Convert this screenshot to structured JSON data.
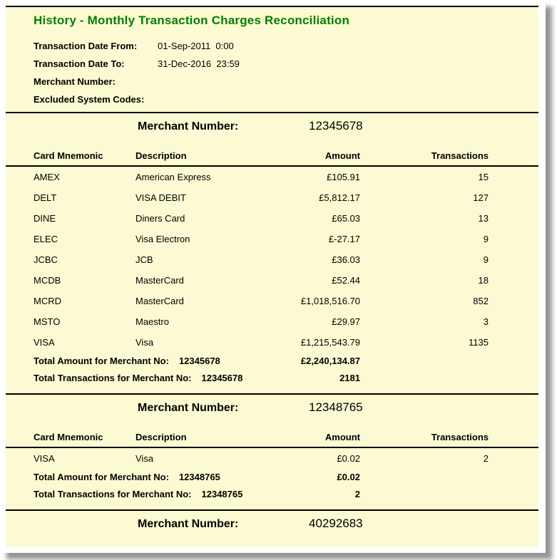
{
  "report": {
    "title": "History - Monthly Transaction Charges Reconciliation",
    "filters": [
      {
        "label": "Transaction Date From:",
        "value": "01-Sep-2011  0:00"
      },
      {
        "label": "Transaction Date To:",
        "value": "31-Dec-2016  23:59"
      },
      {
        "label": "Merchant Number:",
        "value": ""
      },
      {
        "label": "Excluded System Codes:",
        "value": ""
      }
    ],
    "merchant_label": "Merchant Number:",
    "columns": {
      "mnemonic": "Card Mnemonic",
      "description": "Description",
      "amount": "Amount",
      "transactions": "Transactions"
    },
    "total_amount_label": "Total Amount for Merchant No:",
    "total_transactions_label": "Total Transactions for Merchant No:",
    "sections": [
      {
        "merchant_number": "12345678",
        "rows": [
          {
            "mnemonic": "AMEX",
            "description": "American Express",
            "amount": "£105.91",
            "transactions": "15"
          },
          {
            "mnemonic": "DELT",
            "description": "VISA DEBIT",
            "amount": "£5,812.17",
            "transactions": "127"
          },
          {
            "mnemonic": "DINE",
            "description": "Diners Card",
            "amount": "£65.03",
            "transactions": "13"
          },
          {
            "mnemonic": "ELEC",
            "description": "Visa Electron",
            "amount": "£-27.17",
            "transactions": "9"
          },
          {
            "mnemonic": "JCBC",
            "description": "JCB",
            "amount": "£36.03",
            "transactions": "9"
          },
          {
            "mnemonic": "MCDB",
            "description": "MasterCard",
            "amount": "£52.44",
            "transactions": "18"
          },
          {
            "mnemonic": "MCRD",
            "description": "MasterCard",
            "amount": "£1,018,516.70",
            "transactions": "852"
          },
          {
            "mnemonic": "MSTO",
            "description": "Maestro",
            "amount": "£29.97",
            "transactions": "3"
          },
          {
            "mnemonic": "VISA",
            "description": "Visa",
            "amount": "£1,215,543.79",
            "transactions": "1135"
          }
        ],
        "total_amount": "£2,240,134.87",
        "total_transactions": "2181"
      },
      {
        "merchant_number": "12348765",
        "rows": [
          {
            "mnemonic": "VISA",
            "description": "Visa",
            "amount": "£0.02",
            "transactions": "2"
          }
        ],
        "total_amount": "£0.02",
        "total_transactions": "2"
      },
      {
        "merchant_number": "40292683",
        "rows": [],
        "total_amount": null,
        "total_transactions": null
      }
    ],
    "colors": {
      "title_green": "#008000",
      "page_background": "#FCFAD2",
      "rule": "#000000"
    }
  }
}
